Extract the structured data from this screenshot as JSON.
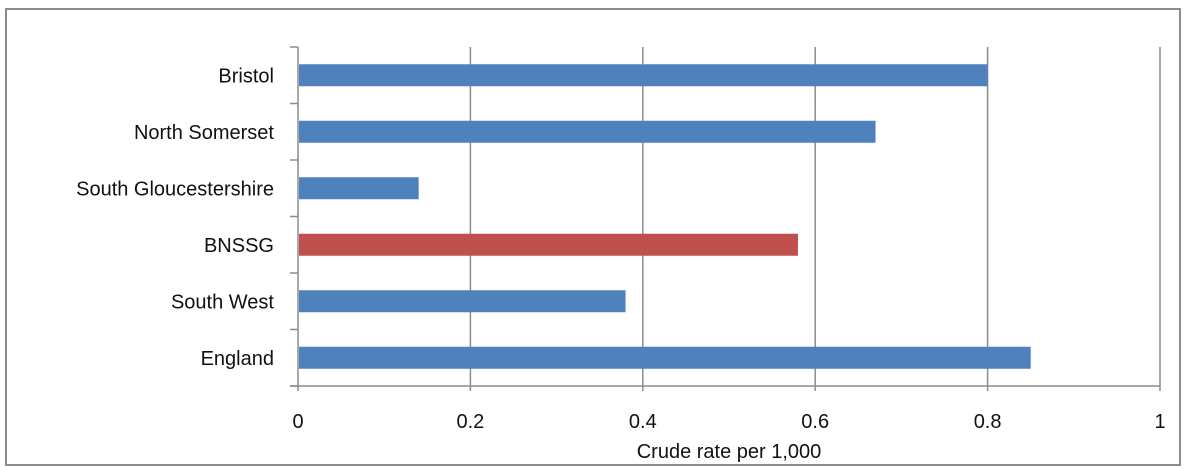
{
  "chart_data": {
    "type": "bar",
    "orientation": "horizontal",
    "categories": [
      "Bristol",
      "North Somerset",
      "South Gloucestershire",
      "BNSSG",
      "South West",
      "England"
    ],
    "values": [
      0.8,
      0.67,
      0.14,
      0.58,
      0.38,
      0.85
    ],
    "bar_colors": [
      "#4f81bd",
      "#4f81bd",
      "#4f81bd",
      "#c0504d",
      "#4f81bd",
      "#4f81bd"
    ],
    "xlabel": "Crude rate per 1,000",
    "xlim": [
      0,
      1
    ],
    "xticks": [
      0,
      0.2,
      0.4,
      0.6,
      0.8,
      1
    ],
    "xtick_labels": [
      "0",
      "0.2",
      "0.4",
      "0.6",
      "0.8",
      "1"
    ],
    "grid": "vertical major gridlines",
    "legend": "none"
  }
}
